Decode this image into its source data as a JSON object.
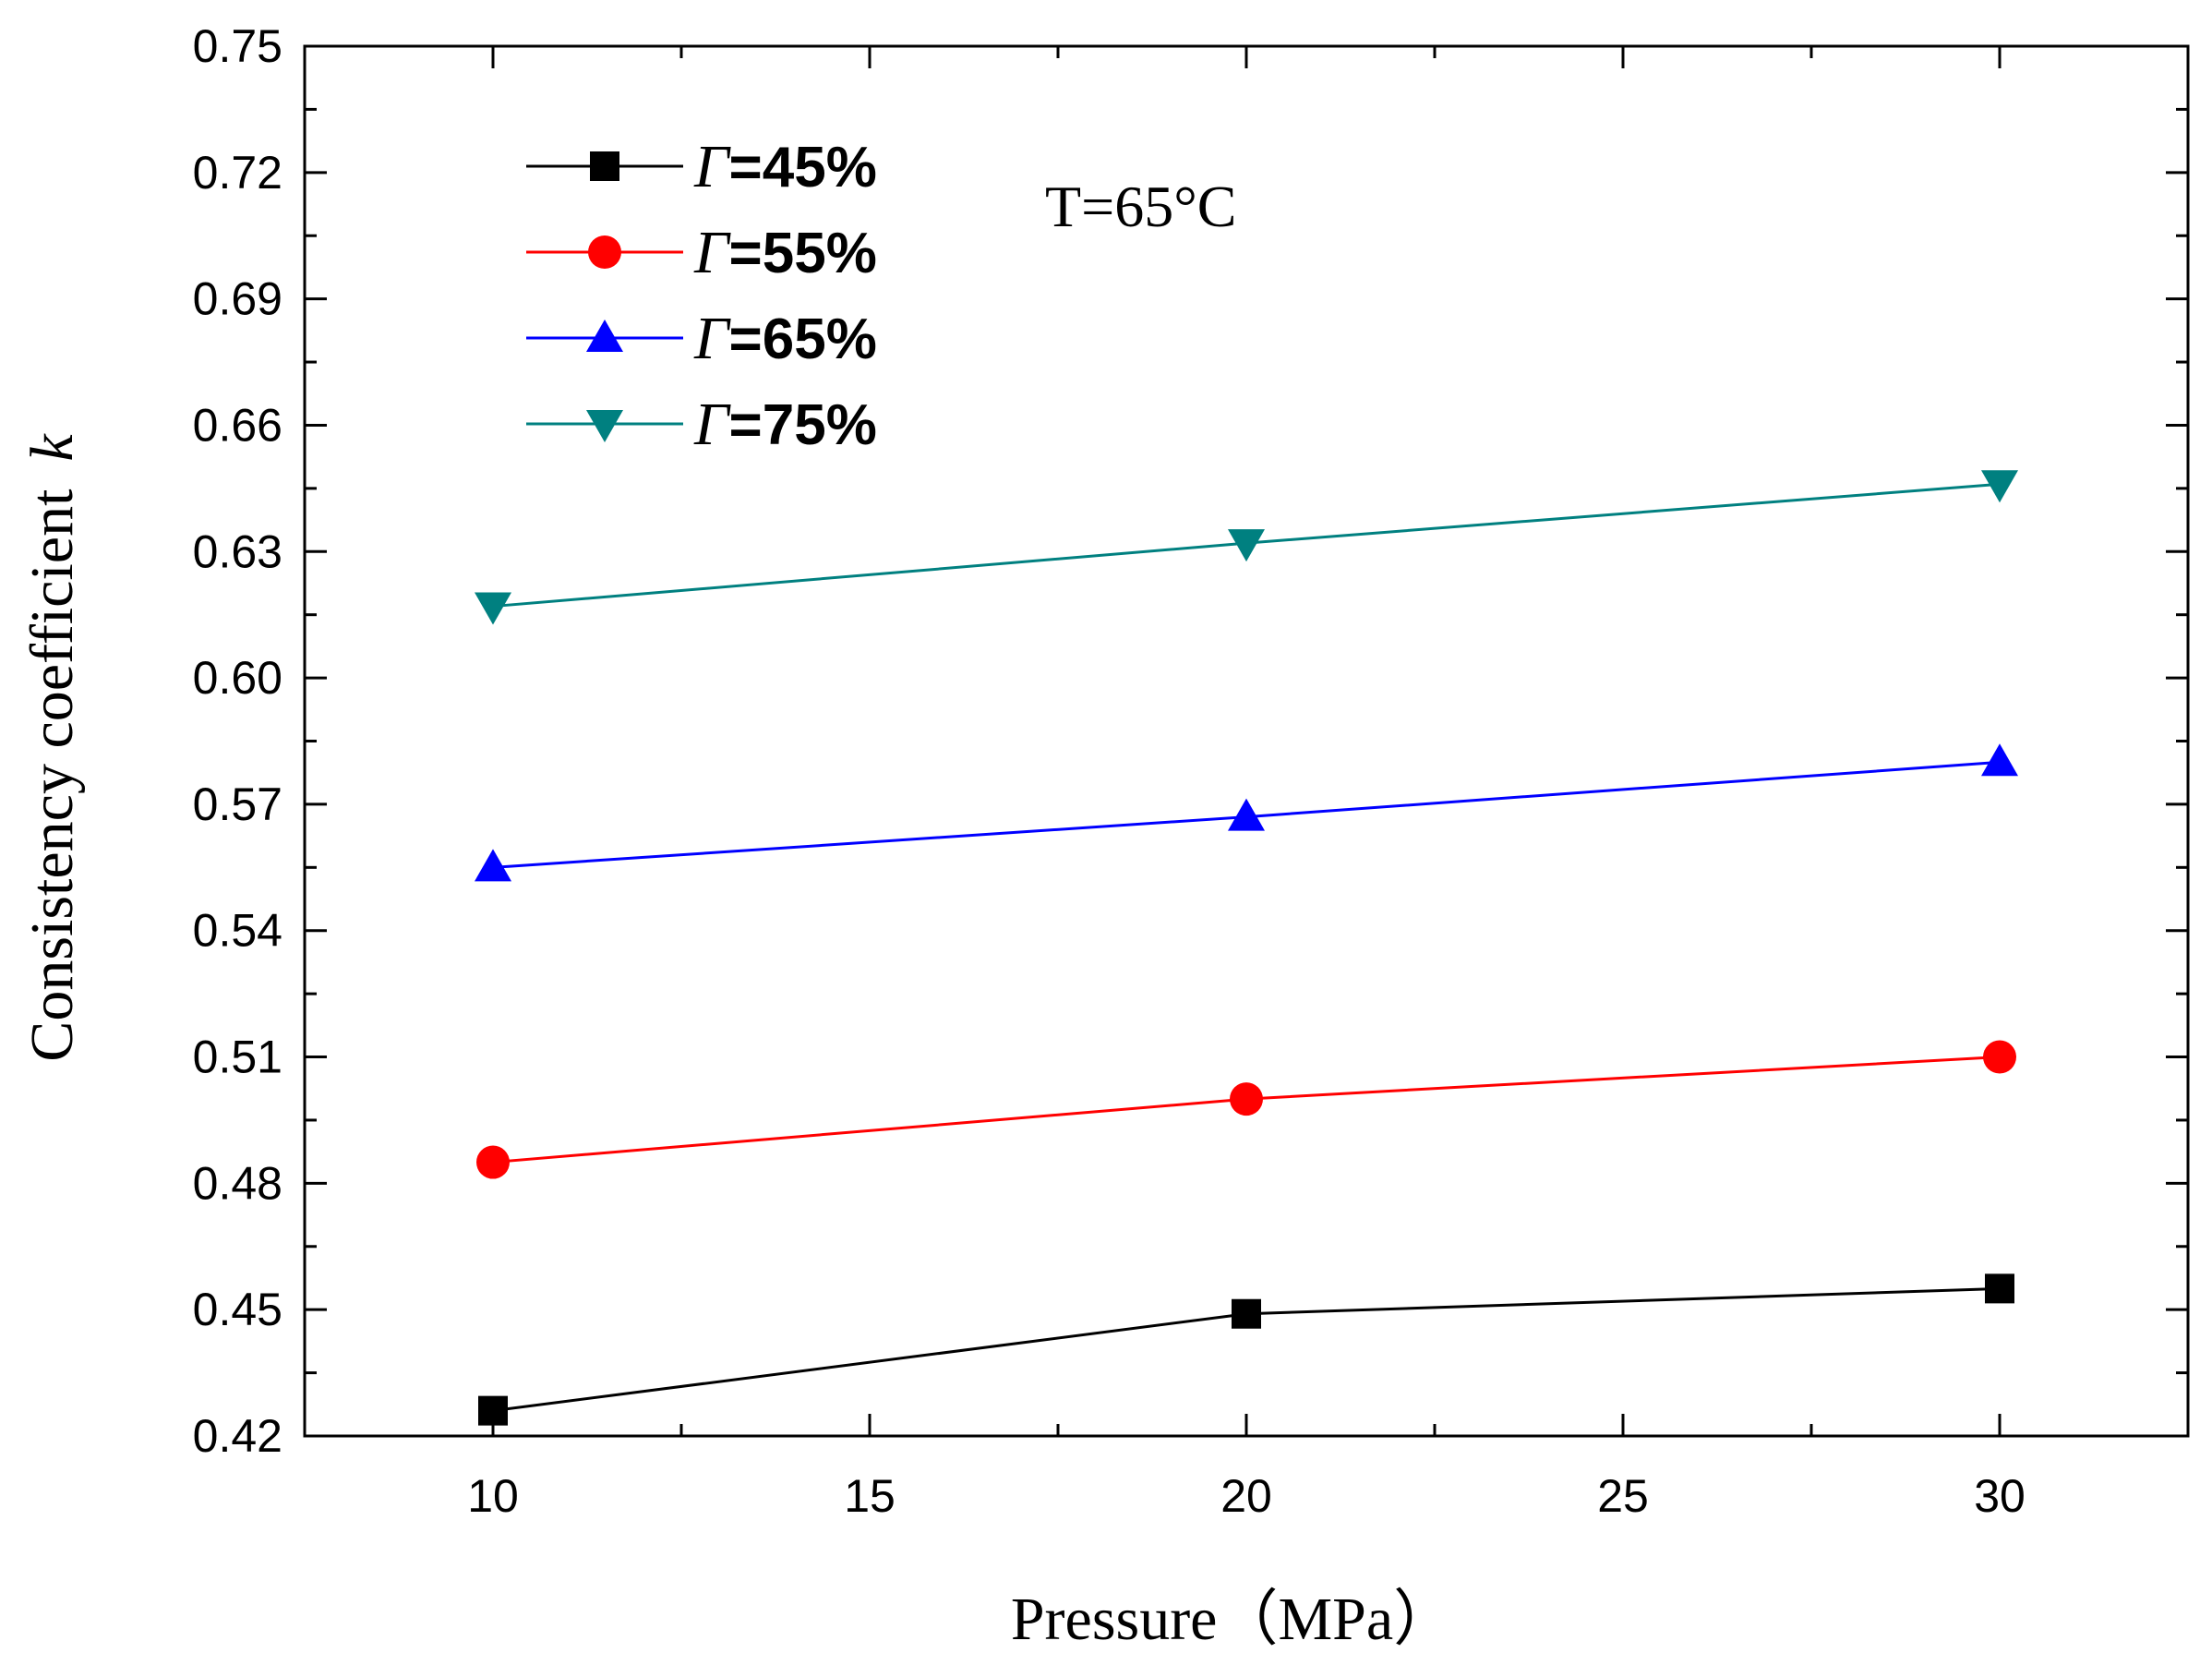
{
  "chart_data": {
    "type": "line",
    "title": "",
    "xlabel": "Pressure（MPa）",
    "ylabel": "Consistency coefficient",
    "ylabel_symbol": "k",
    "xlim": [
      7.5,
      32.5
    ],
    "ylim": [
      0.42,
      0.75
    ],
    "x_ticks": [
      10,
      15,
      20,
      25,
      30
    ],
    "x_tick_labels": [
      "10",
      "15",
      "20",
      "25",
      "30"
    ],
    "y_ticks": [
      0.42,
      0.45,
      0.48,
      0.51,
      0.54,
      0.57,
      0.6,
      0.63,
      0.66,
      0.69,
      0.72,
      0.75
    ],
    "y_tick_labels": [
      "0.42",
      "0.45",
      "0.48",
      "0.51",
      "0.54",
      "0.57",
      "0.60",
      "0.63",
      "0.66",
      "0.69",
      "0.72",
      "0.75"
    ],
    "x": [
      10,
      20,
      30
    ],
    "series": [
      {
        "name": "Γ=45%",
        "symbol": "Γ",
        "suffix": "=45%",
        "color": "#000000",
        "marker": "square",
        "values": [
          0.426,
          0.449,
          0.455
        ]
      },
      {
        "name": "Γ=55%",
        "symbol": "Γ",
        "suffix": "=55%",
        "color": "#ff0000",
        "marker": "circle",
        "values": [
          0.485,
          0.5,
          0.51
        ]
      },
      {
        "name": "Γ=65%",
        "symbol": "Γ",
        "suffix": "=65%",
        "color": "#0000ff",
        "marker": "triangle-up",
        "values": [
          0.555,
          0.567,
          0.58
        ]
      },
      {
        "name": "Γ=75%",
        "symbol": "Γ",
        "suffix": "=75%",
        "color": "#008080",
        "marker": "triangle-down",
        "values": [
          0.617,
          0.632,
          0.646
        ]
      }
    ],
    "annotation": "T=65°C",
    "grid": false,
    "legend_position": "top-left"
  }
}
